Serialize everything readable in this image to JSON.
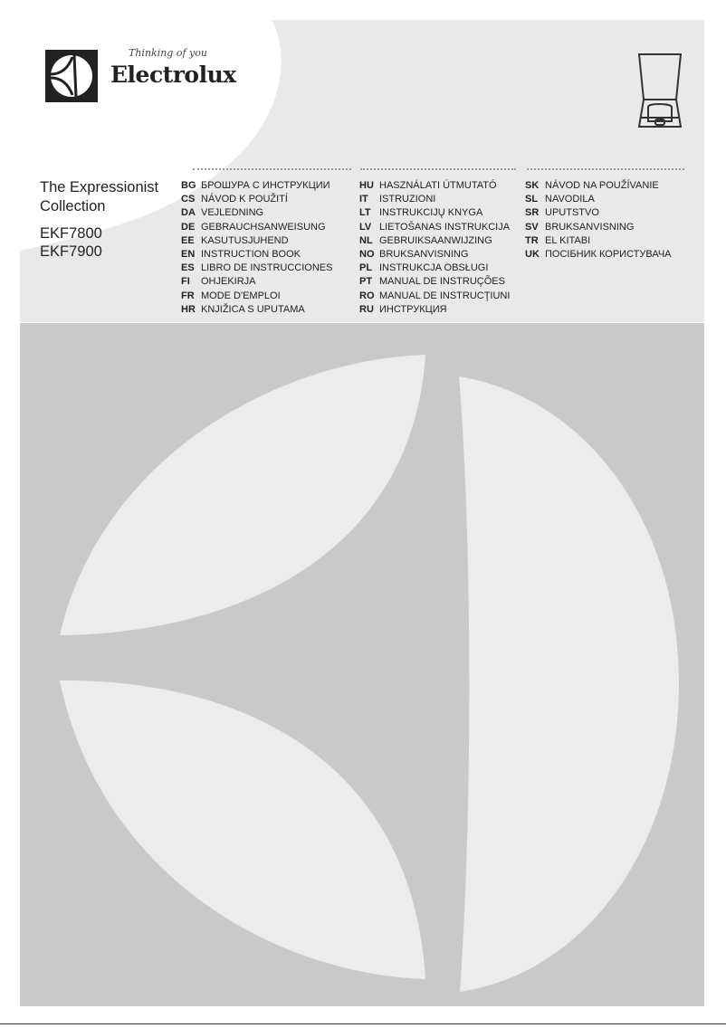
{
  "brand": {
    "name": "Electrolux",
    "tagline": "Thinking of you"
  },
  "product": {
    "title_line1": "The Expressionist",
    "title_line2": "Collection",
    "models": [
      "EKF7800",
      "EKF7900"
    ]
  },
  "languages": [
    [
      {
        "code": "BG",
        "text": "БРОШУРА С ИНСТРУКЦИИ"
      },
      {
        "code": "CS",
        "text": "NÁVOD K POUŽITÍ"
      },
      {
        "code": "DA",
        "text": "VEJLEDNING"
      },
      {
        "code": "DE",
        "text": "GEBRAUCHSANWEISUNG"
      },
      {
        "code": "EE",
        "text": "KASUTUSJUHEND"
      },
      {
        "code": "EN",
        "text": "INSTRUCTION BOOK"
      },
      {
        "code": "ES",
        "text": "LIBRO DE INSTRUCCIONES"
      },
      {
        "code": "FI",
        "text": "OHJEKIRJA"
      },
      {
        "code": "FR",
        "text": "MODE D'EMPLOI"
      },
      {
        "code": "HR",
        "text": "KNJIŽICA S UPUTAMA"
      }
    ],
    [
      {
        "code": "HU",
        "text": "HASZNÁLATI ÚTMUTATÓ"
      },
      {
        "code": "IT",
        "text": "ISTRUZIONI"
      },
      {
        "code": "LT",
        "text": "INSTRUKCIJŲ KNYGA"
      },
      {
        "code": "LV",
        "text": "LIETOŠANAS INSTRUKCIJA"
      },
      {
        "code": "NL",
        "text": "GEBRUIKSAANWIJZING"
      },
      {
        "code": "NO",
        "text": "BRUKSANVISNING"
      },
      {
        "code": "PL",
        "text": "INSTRUKCJA OBSŁUGI"
      },
      {
        "code": "PT",
        "text": "MANUAL DE INSTRUÇÕES"
      },
      {
        "code": "RO",
        "text": "MANUAL DE INSTRUCŢIUNI"
      },
      {
        "code": "RU",
        "text": "ИНСТРУКЦИЯ"
      }
    ],
    [
      {
        "code": "SK",
        "text": "NÁVOD NA POUŽÍVANIE"
      },
      {
        "code": "SL",
        "text": "NAVODILA"
      },
      {
        "code": "SR",
        "text": "UPUTSTVO"
      },
      {
        "code": "SV",
        "text": "BRUKSANVISNING"
      },
      {
        "code": "TR",
        "text": "EL KITABI"
      },
      {
        "code": "UK",
        "text": "ПОСІБНИК КОРИСТУВАЧА"
      }
    ]
  ],
  "colors": {
    "top_bg": "#e9e9e9",
    "bottom_bg": "#c9c9c9",
    "emblem": "#ececec",
    "logo": "#222222"
  },
  "icons": {
    "logo": "electrolux-emblem-icon",
    "product": "coffee-maker-icon"
  }
}
